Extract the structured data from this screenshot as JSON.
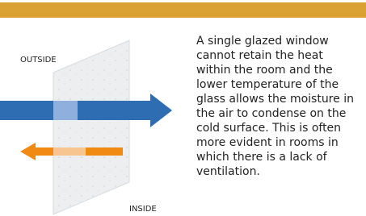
{
  "outside_label": "OUTSIDE",
  "inside_label": "INSIDE",
  "description": [
    "A single glazed window",
    "cannot retain the heat",
    "within the room and the",
    "lower temperature of the",
    "glass allows the moisture in",
    "the air to condense on the",
    "cold surface. This is often",
    "more evident in rooms in",
    "which there is a lack of",
    "ventilation."
  ]
}
